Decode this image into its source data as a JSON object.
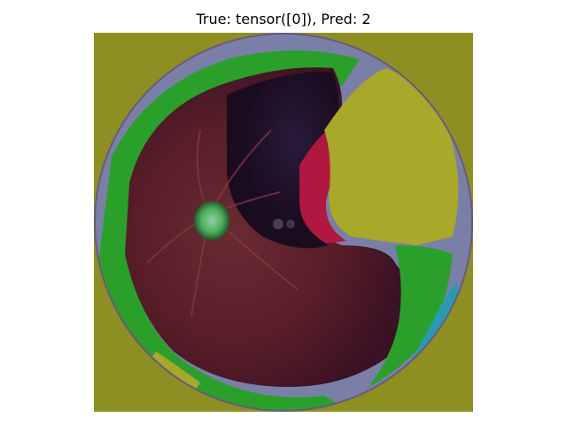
{
  "figure": {
    "title": "True: tensor([0]), Pred: 2"
  },
  "image": {
    "description_colors": {
      "background": "#8d8f22",
      "fundus_dark": "#4a1a22",
      "fundus_red": "#7a2a30",
      "shadow": "#1e1030",
      "green_overlay": "#2aa02a",
      "yellow_overlay": "#a8a82a",
      "crimson_overlay": "#b01840",
      "blue_grey_rim": "#7a7fa8",
      "cyan_overlay": "#2a9ab0",
      "optic_disc": "#4fae5a"
    }
  }
}
